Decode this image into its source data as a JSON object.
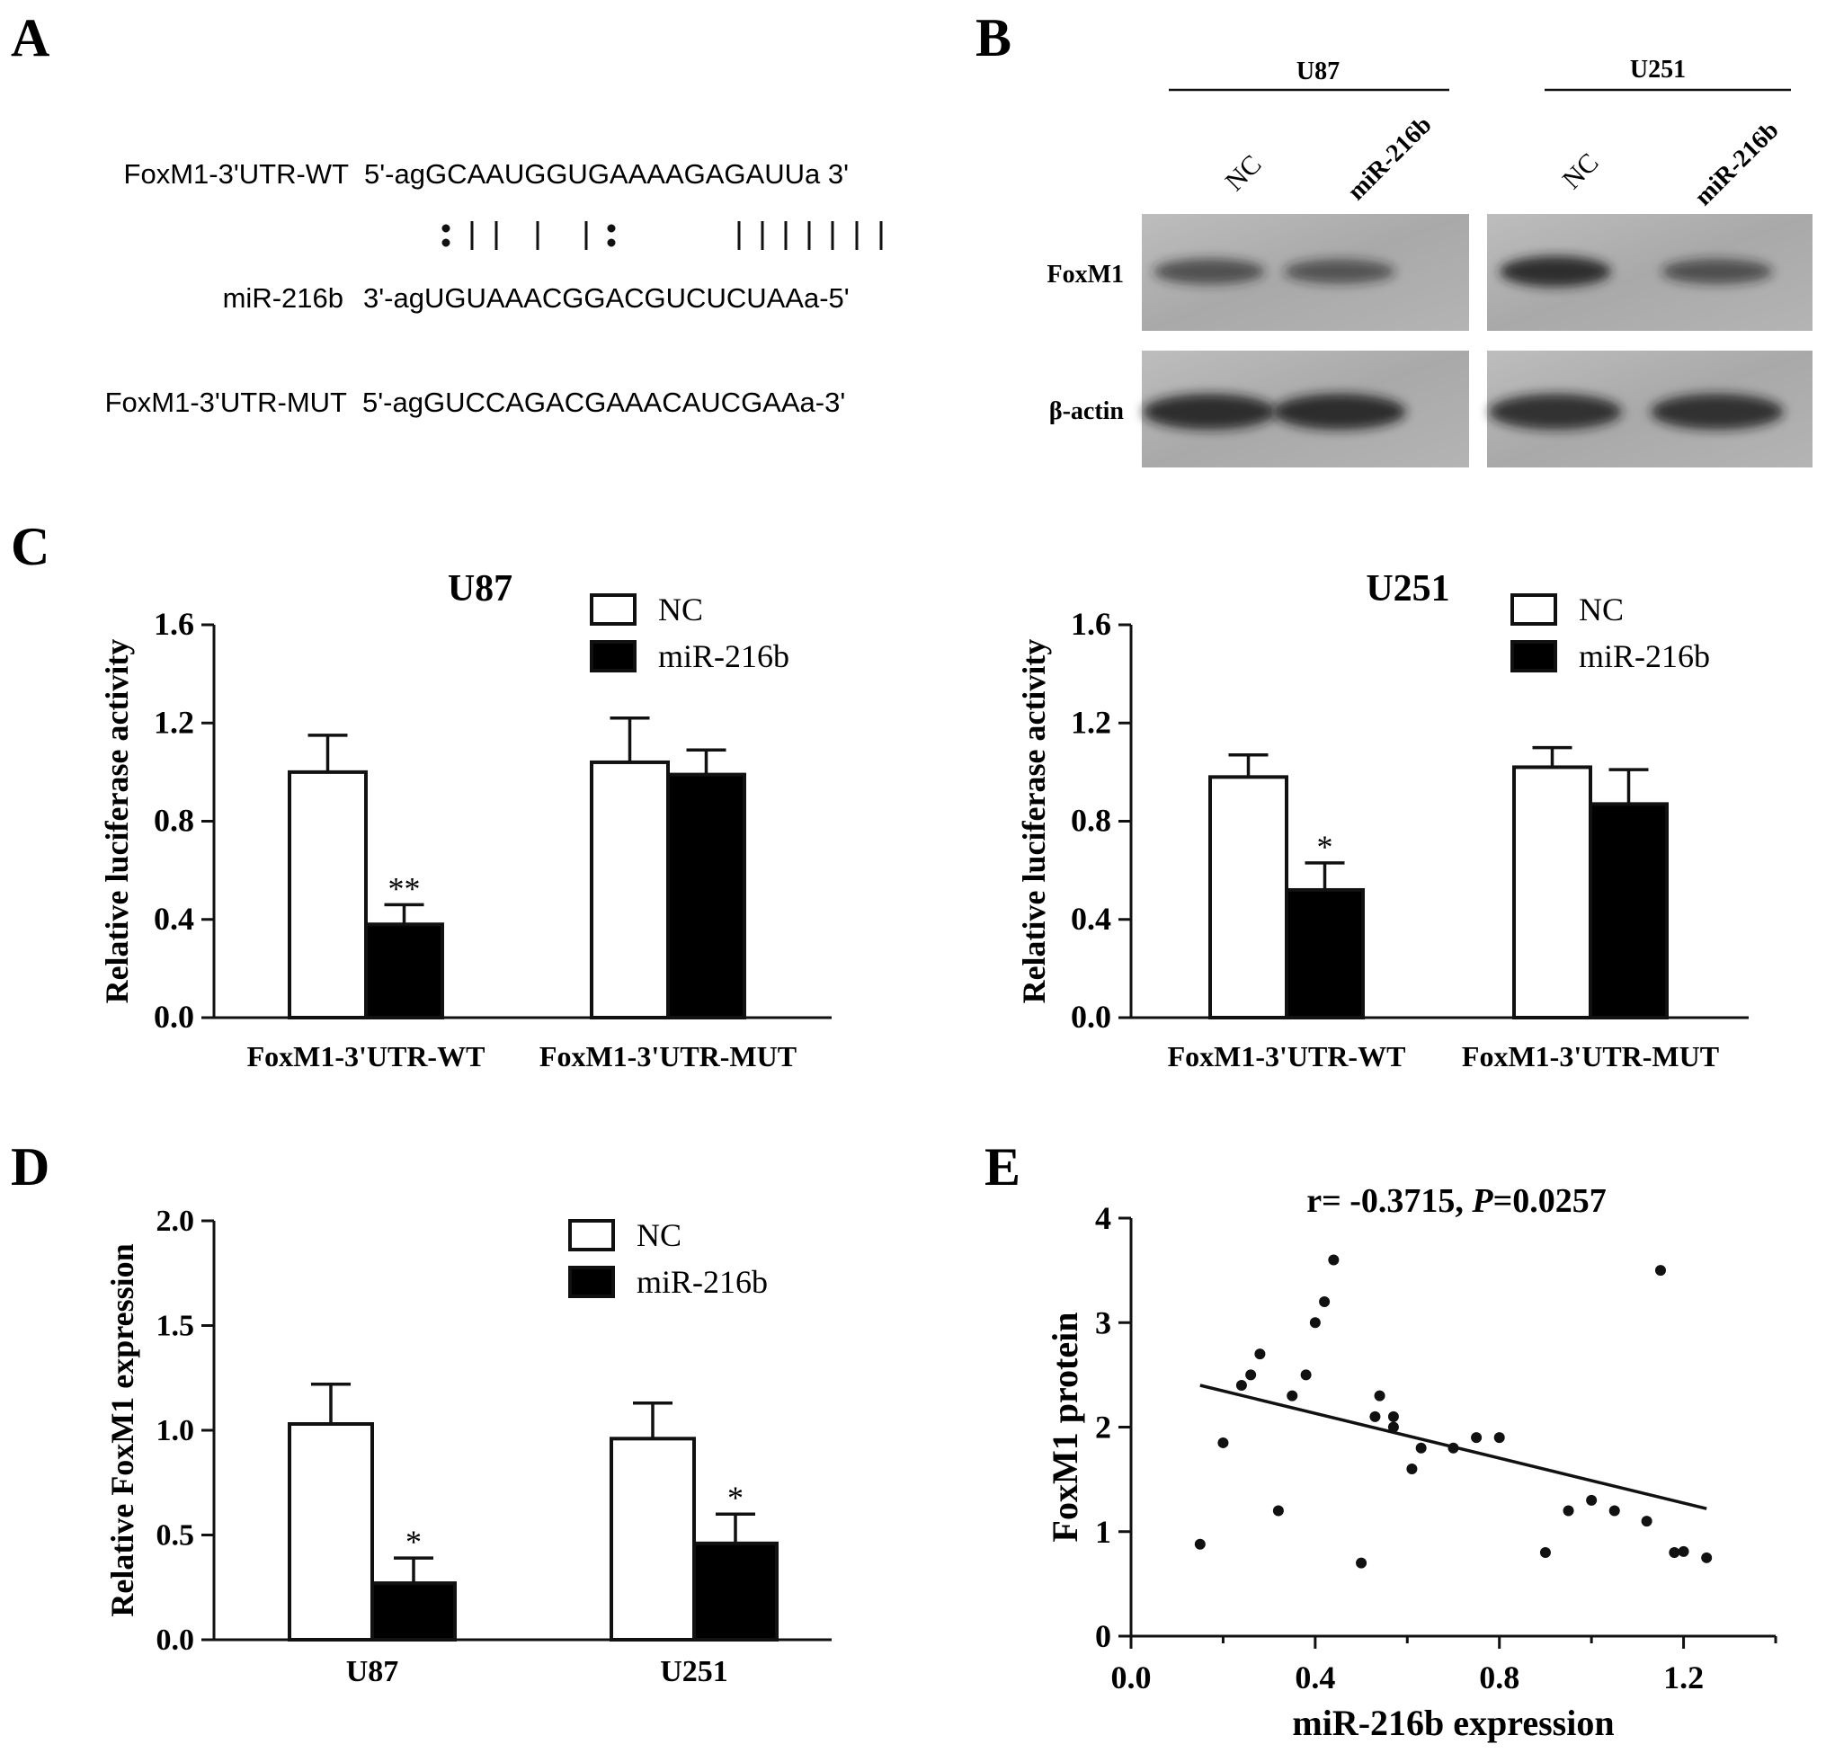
{
  "panel_labels": {
    "a": "A",
    "b": "B",
    "c": "C",
    "d": "D",
    "e": "E"
  },
  "panel_a": {
    "rows": [
      {
        "label": "FoxM1-3'UTR-WT",
        "seq": "5'-agGCAAUGGUGAAAAGAGAUUa 3'"
      },
      {
        "label": "miR-216b",
        "seq": "3'-agUGUAAACGGACGUCUCUAAa-5'"
      },
      {
        "label": "FoxM1-3'UTR-MUT",
        "seq": "5'-agGUCCAGACGAAACAUCGAAa-3'"
      }
    ],
    "pairing": ":|| | |: |||||||"
  },
  "panel_b": {
    "cell_lines": [
      "U87",
      "U251"
    ],
    "lanes": [
      "NC",
      "miR-216b",
      "NC",
      "miR-216b"
    ],
    "proteins": [
      "FoxM1",
      "β-actin"
    ],
    "foxm1_band_intensity": [
      0.55,
      0.45,
      0.9,
      0.5
    ],
    "actin_band_intensity": [
      0.85,
      0.85,
      0.8,
      0.8
    ]
  },
  "chart_data": [
    {
      "type": "bar",
      "title": "U87",
      "ylabel": "Relative luciferase activity",
      "categories": [
        "FoxM1-3'UTR-WT",
        "FoxM1-3'UTR-MUT"
      ],
      "series": [
        {
          "name": "NC",
          "values": [
            1.0,
            1.04
          ],
          "errors": [
            0.15,
            0.18
          ]
        },
        {
          "name": "miR-216b",
          "values": [
            0.38,
            0.99
          ],
          "errors": [
            0.08,
            0.1
          ]
        }
      ],
      "significance": [
        "**",
        ""
      ],
      "ylim": [
        0,
        1.6
      ],
      "yticks": [
        "0.0",
        "0.4",
        "0.8",
        "1.2",
        "1.6"
      ],
      "legend": "top-right"
    },
    {
      "type": "bar",
      "title": "U251",
      "ylabel": "Relative luciferase activity",
      "categories": [
        "FoxM1-3'UTR-WT",
        "FoxM1-3'UTR-MUT"
      ],
      "series": [
        {
          "name": "NC",
          "values": [
            0.98,
            1.02
          ],
          "errors": [
            0.09,
            0.08
          ]
        },
        {
          "name": "miR-216b",
          "values": [
            0.52,
            0.87
          ],
          "errors": [
            0.11,
            0.14
          ]
        }
      ],
      "significance": [
        "*",
        ""
      ],
      "ylim": [
        0,
        1.6
      ],
      "yticks": [
        "0.0",
        "0.4",
        "0.8",
        "1.2",
        "1.6"
      ],
      "legend": "top-right"
    },
    {
      "type": "bar",
      "title": "",
      "ylabel": "Relative FoxM1 expression",
      "categories": [
        "U87",
        "U251"
      ],
      "series": [
        {
          "name": "NC",
          "values": [
            1.03,
            0.96
          ],
          "errors": [
            0.19,
            0.17
          ]
        },
        {
          "name": "miR-216b",
          "values": [
            0.27,
            0.46
          ],
          "errors": [
            0.12,
            0.14
          ]
        }
      ],
      "significance": [
        "*",
        "*"
      ],
      "ylim": [
        0,
        2.0
      ],
      "yticks": [
        "0.0",
        "0.5",
        "1.0",
        "1.5",
        "2.0"
      ],
      "legend": "top-right"
    },
    {
      "type": "scatter",
      "title": "r= -0.3715, ",
      "title_p_label": "P",
      "title_p_value": "=0.0257",
      "xlabel": "miR-216b expression",
      "ylabel": "FoxM1 protein",
      "xlim": [
        0,
        1.4
      ],
      "ylim": [
        0,
        4
      ],
      "xticks": [
        "0.0",
        "0.4",
        "0.8",
        "1.2"
      ],
      "yticks": [
        "0",
        "1",
        "2",
        "3",
        "4"
      ],
      "points": [
        [
          0.15,
          0.88
        ],
        [
          0.2,
          1.85
        ],
        [
          0.24,
          2.4
        ],
        [
          0.26,
          2.5
        ],
        [
          0.28,
          2.7
        ],
        [
          0.32,
          1.2
        ],
        [
          0.35,
          2.3
        ],
        [
          0.38,
          2.5
        ],
        [
          0.4,
          3.0
        ],
        [
          0.42,
          3.2
        ],
        [
          0.44,
          3.6
        ],
        [
          0.5,
          0.7
        ],
        [
          0.53,
          2.1
        ],
        [
          0.54,
          2.3
        ],
        [
          0.57,
          2.0
        ],
        [
          0.57,
          2.1
        ],
        [
          0.61,
          1.6
        ],
        [
          0.63,
          1.8
        ],
        [
          0.7,
          1.8
        ],
        [
          0.75,
          1.9
        ],
        [
          0.8,
          1.9
        ],
        [
          0.9,
          0.8
        ],
        [
          0.95,
          1.2
        ],
        [
          1.0,
          1.3
        ],
        [
          1.05,
          1.2
        ],
        [
          1.12,
          1.1
        ],
        [
          1.15,
          3.5
        ],
        [
          1.18,
          0.8
        ],
        [
          1.2,
          0.81
        ],
        [
          1.25,
          0.75
        ]
      ],
      "fit_line": {
        "x": [
          0.15,
          1.25
        ],
        "y": [
          2.4,
          1.22
        ]
      }
    }
  ]
}
